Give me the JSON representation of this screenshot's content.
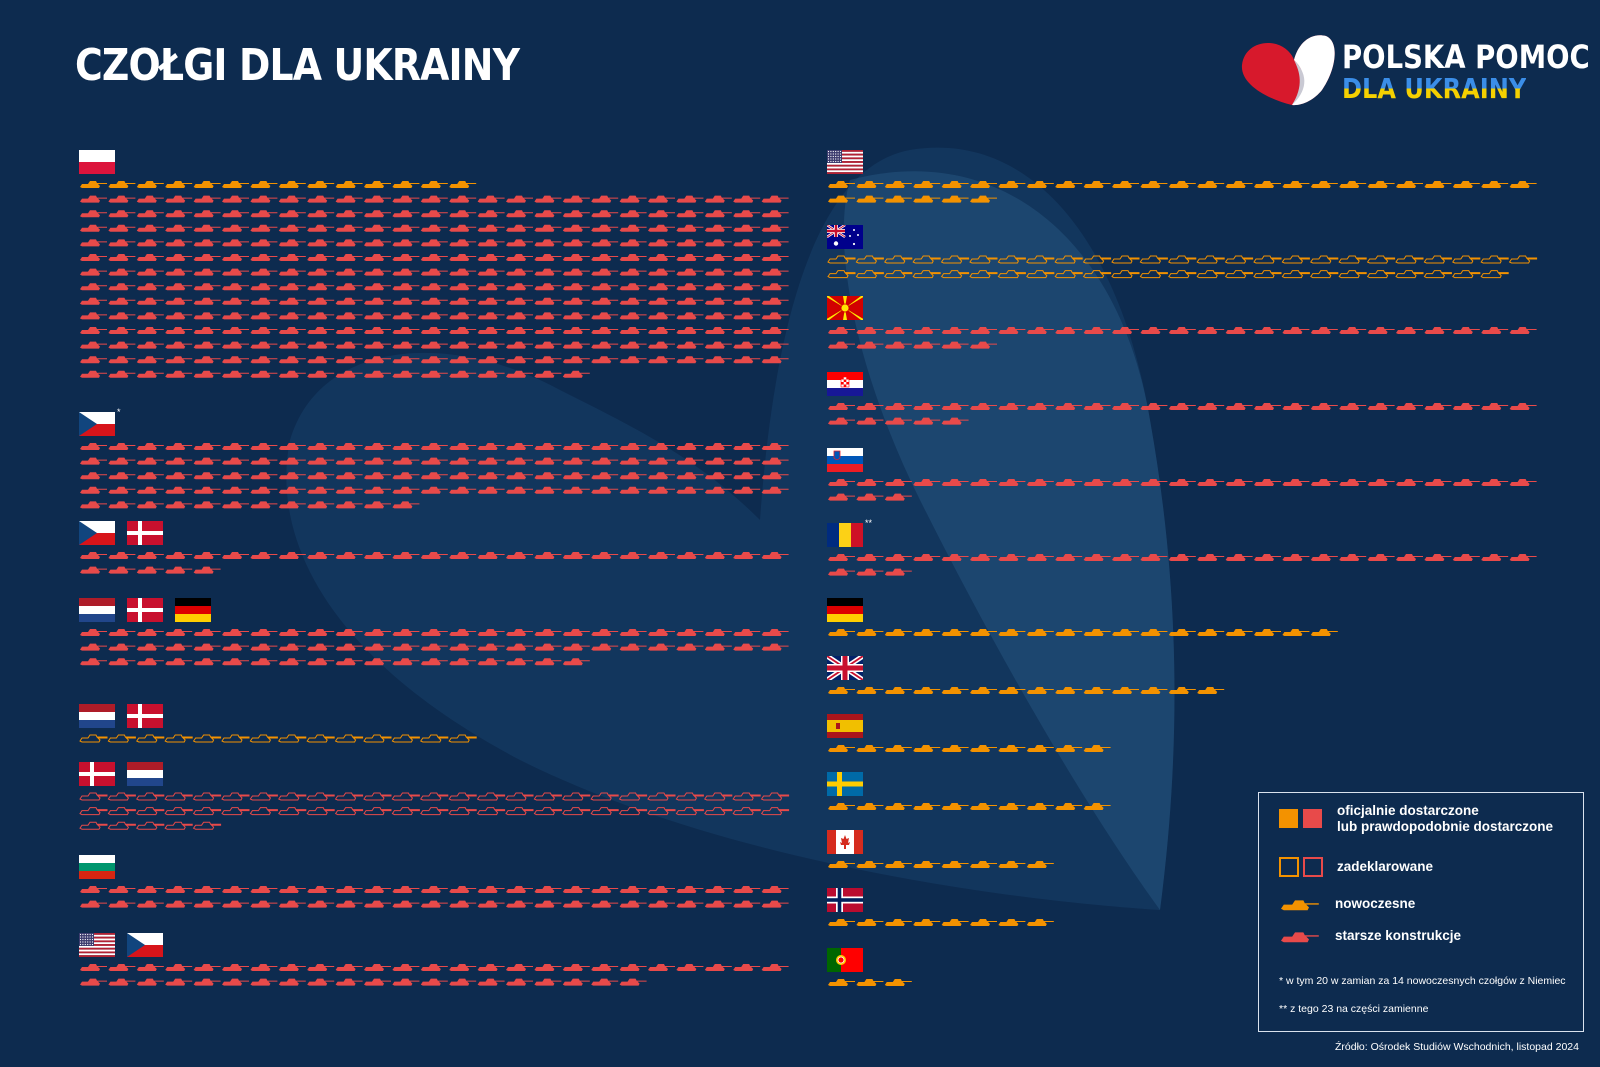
{
  "header": {
    "title": "CZOŁGI DLA UKRAINY"
  },
  "logo": {
    "line1": "POLSKA POMOC",
    "line2": "DLA UKRAINY"
  },
  "colors": {
    "modern": "#f39200",
    "older": "#e84a4a",
    "background": "#0d2b4f"
  },
  "chart_data": {
    "type": "pictogram",
    "title": "CZOŁGI DLA UKRAINY",
    "unit": "1 icon = 1 tank",
    "groups": [
      {
        "donors": [
          "poland"
        ],
        "segments": [
          {
            "kind": "modern",
            "status": "delivered",
            "count": 14
          },
          {
            "kind": "older",
            "status": "delivered",
            "count": 318
          }
        ]
      },
      {
        "donors": [
          "czechia"
        ],
        "note": "*",
        "segments": [
          {
            "kind": "older",
            "status": "delivered",
            "count": 112
          }
        ]
      },
      {
        "donors": [
          "czechia",
          "denmark"
        ],
        "segments": [
          {
            "kind": "older",
            "status": "delivered",
            "count": 30
          }
        ]
      },
      {
        "donors": [
          "netherlands",
          "denmark",
          "germany"
        ],
        "segments": [
          {
            "kind": "older",
            "status": "delivered",
            "count": 68
          }
        ]
      },
      {
        "donors": [
          "netherlands",
          "denmark"
        ],
        "segments": [
          {
            "kind": "modern",
            "status": "declared",
            "count": 14
          }
        ]
      },
      {
        "donors": [
          "denmark",
          "netherlands"
        ],
        "segments": [
          {
            "kind": "older",
            "status": "declared",
            "count": 55
          }
        ]
      },
      {
        "donors": [
          "bulgaria"
        ],
        "segments": [
          {
            "kind": "older",
            "status": "delivered",
            "count": 50
          }
        ]
      },
      {
        "donors": [
          "usa",
          "czechia"
        ],
        "segments": [
          {
            "kind": "older",
            "status": "delivered",
            "count": 45
          }
        ]
      },
      {
        "donors": [
          "usa"
        ],
        "segments": [
          {
            "kind": "modern",
            "status": "delivered",
            "count": 31
          }
        ]
      },
      {
        "donors": [
          "australia"
        ],
        "segments": [
          {
            "kind": "modern",
            "status": "declared",
            "count": 49
          }
        ]
      },
      {
        "donors": [
          "north-macedonia"
        ],
        "segments": [
          {
            "kind": "older",
            "status": "delivered",
            "count": 31
          }
        ]
      },
      {
        "donors": [
          "croatia"
        ],
        "segments": [
          {
            "kind": "older",
            "status": "delivered",
            "count": 30
          }
        ]
      },
      {
        "donors": [
          "slovenia"
        ],
        "segments": [
          {
            "kind": "older",
            "status": "delivered",
            "count": 28
          }
        ]
      },
      {
        "donors": [
          "romania"
        ],
        "note": "**",
        "segments": [
          {
            "kind": "older",
            "status": "delivered",
            "count": 28
          }
        ]
      },
      {
        "donors": [
          "germany"
        ],
        "segments": [
          {
            "kind": "modern",
            "status": "delivered",
            "count": 18
          }
        ]
      },
      {
        "donors": [
          "uk"
        ],
        "segments": [
          {
            "kind": "modern",
            "status": "delivered",
            "count": 14
          }
        ]
      },
      {
        "donors": [
          "spain"
        ],
        "segments": [
          {
            "kind": "modern",
            "status": "delivered",
            "count": 10
          }
        ]
      },
      {
        "donors": [
          "sweden"
        ],
        "segments": [
          {
            "kind": "modern",
            "status": "delivered",
            "count": 10
          }
        ]
      },
      {
        "donors": [
          "canada"
        ],
        "segments": [
          {
            "kind": "modern",
            "status": "delivered",
            "count": 8
          }
        ]
      },
      {
        "donors": [
          "norway"
        ],
        "segments": [
          {
            "kind": "modern",
            "status": "delivered",
            "count": 8
          }
        ]
      },
      {
        "donors": [
          "portugal"
        ],
        "segments": [
          {
            "kind": "modern",
            "status": "delivered",
            "count": 3
          }
        ]
      }
    ]
  },
  "legend": {
    "delivered": "oficjalnie dostarczone\nlub prawdopodobnie dostarczone",
    "declared": "zadeklarowane",
    "modern": "nowoczesne",
    "older": "starsze konstrukcje",
    "note1": "* w tym 20 w zamian za 14 nowoczesnych czołgów z Niemiec",
    "note2": "** z tego 23 na części zamienne"
  },
  "source": "Źródło: Ośrodek Studiów Wschodnich, listopad 2024"
}
